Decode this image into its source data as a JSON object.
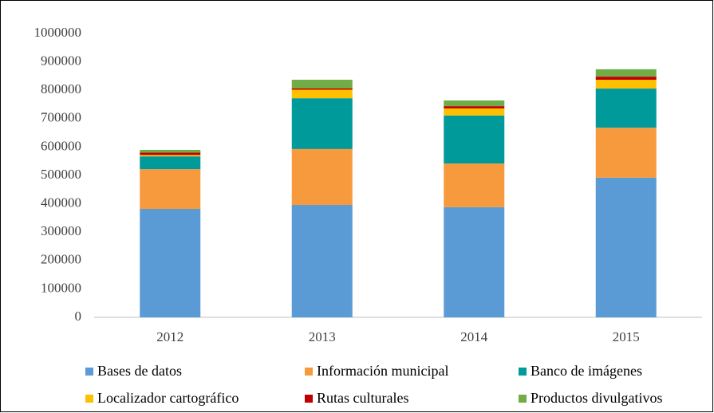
{
  "chart_data": {
    "type": "bar",
    "stacked": true,
    "categories": [
      "2012",
      "2013",
      "2014",
      "2015"
    ],
    "series": [
      {
        "name": "Bases de datos",
        "color": "#5b9bd5",
        "values": [
          382000,
          396000,
          388000,
          492000
        ]
      },
      {
        "name": "Información municipal",
        "color": "#f79a3e",
        "values": [
          140000,
          197000,
          154000,
          176000
        ]
      },
      {
        "name": "Banco de imágenes",
        "color": "#009a9a",
        "values": [
          45000,
          179000,
          169000,
          138000
        ]
      },
      {
        "name": "Localizador cartográfico",
        "color": "#ffc000",
        "values": [
          5000,
          30000,
          25000,
          31000
        ]
      },
      {
        "name": "Rutas culturales",
        "color": "#c00000",
        "values": [
          8000,
          5000,
          8000,
          11000
        ]
      },
      {
        "name": "Productos divulgativos",
        "color": "#70ad47",
        "values": [
          10000,
          30000,
          20000,
          26000
        ]
      }
    ],
    "ylim": [
      0,
      1000000
    ],
    "yticks": [
      0,
      100000,
      200000,
      300000,
      400000,
      500000,
      600000,
      700000,
      800000,
      900000,
      1000000
    ],
    "grid": false,
    "legend": "bottom"
  }
}
